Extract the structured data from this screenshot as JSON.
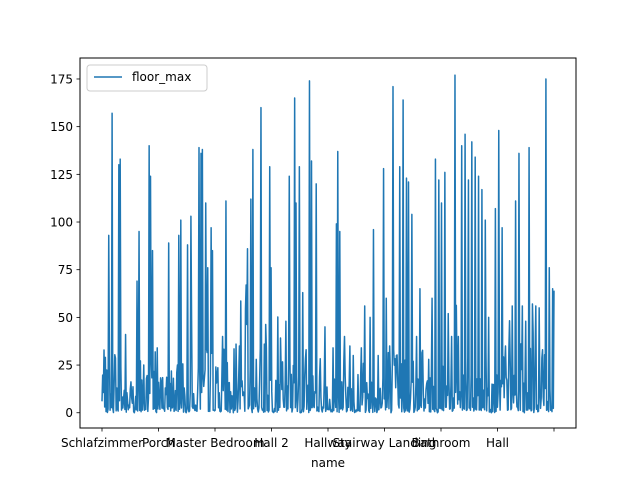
{
  "chart_data": {
    "type": "line",
    "title": "",
    "xlabel": "name",
    "ylabel": "",
    "x_tick_labels": [
      "Schlafzimmer",
      "Porch",
      "Master Bedroom",
      "Hall 2",
      "Hallway",
      "Stairway Landing",
      "Bathroom",
      "Hall",
      ""
    ],
    "y_ticks": [
      0,
      25,
      50,
      75,
      100,
      125,
      150,
      175
    ],
    "ylim": [
      -8,
      186
    ],
    "x_count": 672,
    "legend": {
      "position": "top-left",
      "entries": [
        "floor_max"
      ]
    },
    "grid": false,
    "series": [
      {
        "name": "floor_max",
        "color": "#1f77b4",
        "peaks": [
          [
            2,
            29
          ],
          [
            4,
            93
          ],
          [
            6,
            157
          ],
          [
            9,
            13
          ],
          [
            10,
            130
          ],
          [
            11,
            133
          ],
          [
            14,
            41
          ],
          [
            18,
            5
          ],
          [
            21,
            69
          ],
          [
            22,
            95
          ],
          [
            25,
            25
          ],
          [
            28,
            140
          ],
          [
            29,
            124
          ],
          [
            30,
            85
          ],
          [
            33,
            34
          ],
          [
            38,
            13
          ],
          [
            40,
            89
          ],
          [
            45,
            25
          ],
          [
            46,
            93
          ],
          [
            47,
            101
          ],
          [
            49,
            13
          ],
          [
            51,
            88
          ],
          [
            53,
            103
          ],
          [
            56,
            4
          ],
          [
            58,
            139
          ],
          [
            59,
            136
          ],
          [
            60,
            138
          ],
          [
            62,
            110
          ],
          [
            63,
            76
          ],
          [
            65,
            97
          ],
          [
            66,
            85
          ],
          [
            68,
            24
          ],
          [
            72,
            40
          ],
          [
            74,
            111
          ],
          [
            77,
            11
          ],
          [
            80,
            36
          ],
          [
            82,
            35
          ],
          [
            84,
            9
          ],
          [
            86,
            67
          ],
          [
            87,
            86
          ],
          [
            89,
            112
          ],
          [
            90,
            138
          ],
          [
            92,
            28
          ],
          [
            95,
            160
          ],
          [
            97,
            36
          ],
          [
            98,
            34
          ],
          [
            100,
            129
          ],
          [
            101,
            76
          ],
          [
            104,
            17
          ],
          [
            107,
            22
          ],
          [
            110,
            48
          ],
          [
            112,
            124
          ],
          [
            115,
            165
          ],
          [
            116,
            110
          ],
          [
            118,
            129
          ],
          [
            120,
            63
          ],
          [
            122,
            33
          ],
          [
            124,
            174
          ],
          [
            125,
            132
          ],
          [
            128,
            120
          ],
          [
            130,
            19
          ],
          [
            133,
            45
          ],
          [
            135,
            2
          ],
          [
            138,
            34
          ],
          [
            140,
            99
          ],
          [
            141,
            137
          ],
          [
            142,
            95
          ],
          [
            145,
            40
          ],
          [
            148,
            35
          ],
          [
            150,
            30
          ],
          [
            153,
            20
          ],
          [
            155,
            34
          ],
          [
            157,
            56
          ],
          [
            160,
            50
          ],
          [
            162,
            96
          ],
          [
            165,
            30
          ],
          [
            168,
            128
          ],
          [
            170,
            60
          ],
          [
            172,
            35
          ],
          [
            174,
            171
          ],
          [
            176,
            30
          ],
          [
            178,
            129
          ],
          [
            180,
            164
          ],
          [
            182,
            123
          ],
          [
            183,
            121
          ],
          [
            185,
            104
          ],
          [
            186,
            27
          ],
          [
            188,
            40
          ],
          [
            190,
            65
          ],
          [
            192,
            10
          ],
          [
            195,
            28
          ],
          [
            197,
            60
          ],
          [
            199,
            133
          ],
          [
            201,
            122
          ],
          [
            203,
            110
          ],
          [
            205,
            126
          ],
          [
            207,
            52
          ],
          [
            209,
            40
          ],
          [
            211,
            177
          ],
          [
            213,
            40
          ],
          [
            215,
            140
          ],
          [
            217,
            146
          ],
          [
            219,
            122
          ],
          [
            221,
            142
          ],
          [
            223,
            134
          ],
          [
            225,
            124
          ],
          [
            227,
            117
          ],
          [
            229,
            101
          ],
          [
            231,
            50
          ],
          [
            233,
            15
          ],
          [
            235,
            107
          ],
          [
            237,
            148
          ],
          [
            239,
            97
          ],
          [
            241,
            35
          ],
          [
            243,
            33
          ],
          [
            245,
            56
          ],
          [
            247,
            111
          ],
          [
            249,
            136
          ],
          [
            251,
            56
          ],
          [
            253,
            48
          ],
          [
            255,
            139
          ],
          [
            257,
            57
          ],
          [
            259,
            56
          ],
          [
            261,
            55
          ],
          [
            263,
            33
          ],
          [
            265,
            175
          ],
          [
            267,
            76
          ],
          [
            269,
            65
          ],
          [
            270,
            64
          ]
        ],
        "baseline_range": [
          0,
          20
        ]
      }
    ]
  }
}
